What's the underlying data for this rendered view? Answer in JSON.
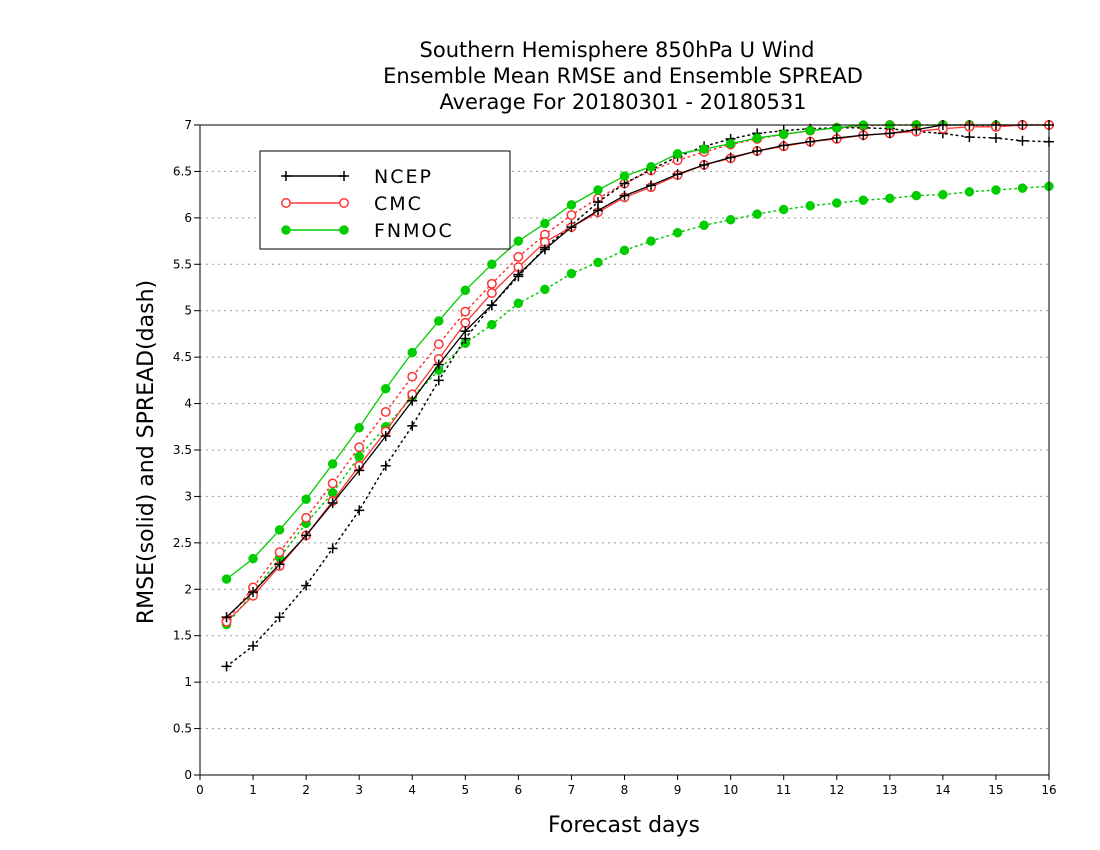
{
  "chart_data": {
    "type": "line",
    "title": [
      "Southern Hemisphere 850hPa U Wind",
      "Ensemble Mean RMSE and Ensemble SPREAD",
      "Average For 20180301 - 20180531"
    ],
    "xlabel": "Forecast days",
    "ylabel": "RMSE(solid) and SPREAD(dash)",
    "xlim": [
      0,
      16
    ],
    "ylim": [
      0,
      7
    ],
    "x_ticks": [
      "0",
      "1",
      "2",
      "3",
      "4",
      "5",
      "6",
      "7",
      "8",
      "9",
      "10",
      "11",
      "12",
      "13",
      "14",
      "15",
      "16"
    ],
    "y_ticks": [
      "0",
      "0.5",
      "1",
      "1.5",
      "2",
      "2.5",
      "3",
      "3.5",
      "4",
      "4.5",
      "5",
      "5.5",
      "6",
      "6.5",
      "7"
    ],
    "grid": "horizontal dotted",
    "legend_position": "top-left",
    "x": [
      0.5,
      1,
      1.5,
      2,
      2.5,
      3,
      3.5,
      4,
      4.5,
      5,
      5.5,
      6,
      6.5,
      7,
      7.5,
      8,
      8.5,
      9,
      9.5,
      10,
      10.5,
      11,
      11.5,
      12,
      12.5,
      13,
      13.5,
      14,
      14.5,
      15,
      15.5,
      16
    ],
    "series": [
      {
        "name": "NCEP",
        "color": "#000000",
        "marker": "plus",
        "rmse": [
          1.7,
          1.97,
          2.27,
          2.58,
          2.93,
          3.28,
          3.65,
          4.03,
          4.42,
          4.78,
          5.06,
          5.39,
          5.66,
          5.9,
          6.08,
          6.24,
          6.35,
          6.47,
          6.57,
          6.65,
          6.72,
          6.78,
          6.82,
          6.86,
          6.89,
          6.91,
          6.95,
          7.0,
          7.0,
          7.0,
          7.0,
          7.0
        ],
        "spread": [
          1.17,
          1.39,
          1.7,
          2.04,
          2.44,
          2.85,
          3.33,
          3.76,
          4.25,
          4.7,
          5.06,
          5.37,
          5.68,
          5.92,
          6.17,
          6.37,
          6.52,
          6.66,
          6.77,
          6.85,
          6.91,
          6.94,
          6.96,
          6.97,
          6.97,
          6.96,
          6.93,
          6.91,
          6.87,
          6.86,
          6.83,
          6.82
        ]
      },
      {
        "name": "CMC",
        "color": "#ff3333",
        "marker": "open-circle",
        "rmse": [
          1.65,
          1.93,
          2.25,
          2.58,
          2.95,
          3.33,
          3.7,
          4.1,
          4.48,
          4.87,
          5.19,
          5.47,
          5.74,
          5.9,
          6.06,
          6.22,
          6.33,
          6.46,
          6.57,
          6.64,
          6.72,
          6.77,
          6.82,
          6.85,
          6.89,
          6.91,
          6.93,
          6.96,
          6.98,
          6.98,
          7.0,
          7.0
        ],
        "spread": [
          1.66,
          2.02,
          2.4,
          2.77,
          3.14,
          3.53,
          3.91,
          4.29,
          4.64,
          4.99,
          5.29,
          5.58,
          5.82,
          6.03,
          6.21,
          6.37,
          6.51,
          6.62,
          6.71,
          6.79,
          6.85,
          6.9,
          6.94,
          6.97,
          6.99,
          7.0,
          7.0,
          7.0,
          7.0,
          6.98,
          7.0,
          7.0
        ]
      },
      {
        "name": "FNMOC",
        "color": "#00cc00",
        "marker": "filled-circle",
        "rmse": [
          2.11,
          2.33,
          2.64,
          2.97,
          3.35,
          3.74,
          4.16,
          4.55,
          4.89,
          5.22,
          5.5,
          5.75,
          5.94,
          6.14,
          6.3,
          6.45,
          6.55,
          6.69,
          6.74,
          6.8,
          6.86,
          6.9,
          6.94,
          6.97,
          7.0,
          7.0,
          7.0,
          7.0,
          7.0,
          7.0,
          7.0,
          7.0
        ],
        "spread": [
          1.62,
          1.96,
          2.34,
          2.71,
          3.04,
          3.43,
          3.75,
          4.07,
          4.36,
          4.65,
          4.85,
          5.08,
          5.23,
          5.4,
          5.52,
          5.65,
          5.75,
          5.84,
          5.92,
          5.98,
          6.04,
          6.09,
          6.13,
          6.16,
          6.19,
          6.21,
          6.24,
          6.25,
          6.28,
          6.3,
          6.32,
          6.34
        ]
      }
    ]
  }
}
